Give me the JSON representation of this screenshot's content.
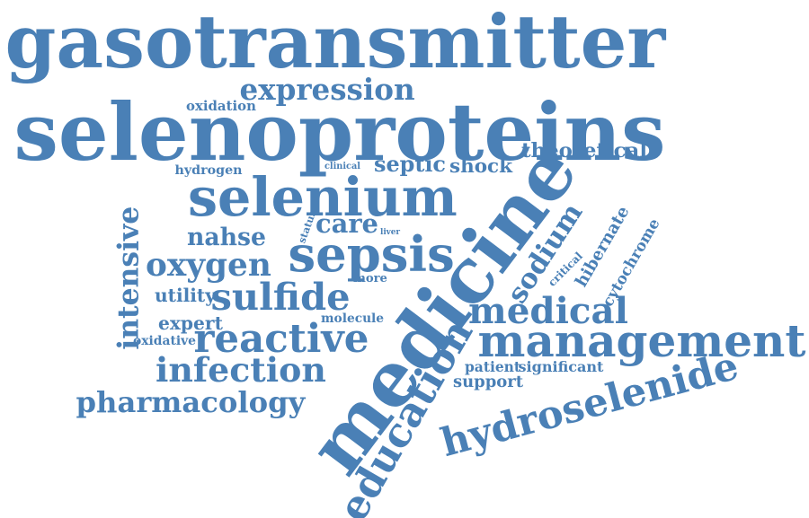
{
  "style": {
    "word_color": "#4a80b6",
    "background": "#ffffff"
  },
  "words": [
    {
      "id": "gasotransmitter",
      "text": "gasotransmitter"
    },
    {
      "id": "selenoproteins",
      "text": "selenoproteins"
    },
    {
      "id": "expression",
      "text": "expression"
    },
    {
      "id": "oxidation",
      "text": "oxidation"
    },
    {
      "id": "theoretical",
      "text": "theoretical"
    },
    {
      "id": "hydrogen",
      "text": "hydrogen"
    },
    {
      "id": "clinical",
      "text": "clinical"
    },
    {
      "id": "septic",
      "text": "septic"
    },
    {
      "id": "shock",
      "text": "shock"
    },
    {
      "id": "selenium",
      "text": "selenium"
    },
    {
      "id": "intensive",
      "text": "intensive"
    },
    {
      "id": "status",
      "text": "status"
    },
    {
      "id": "care",
      "text": "care"
    },
    {
      "id": "liver",
      "text": "liver"
    },
    {
      "id": "nahse",
      "text": "nahse"
    },
    {
      "id": "sepsis",
      "text": "sepsis"
    },
    {
      "id": "oxygen",
      "text": "oxygen"
    },
    {
      "id": "medicine",
      "text": "medicine"
    },
    {
      "id": "sodium",
      "text": "sodium"
    },
    {
      "id": "hibernate",
      "text": "hibernate"
    },
    {
      "id": "cytochrome",
      "text": "cytochrome"
    },
    {
      "id": "critical",
      "text": "critical"
    },
    {
      "id": "more",
      "text": "more"
    },
    {
      "id": "utility",
      "text": "utility"
    },
    {
      "id": "sulfide",
      "text": "sulfide"
    },
    {
      "id": "medical",
      "text": "medical"
    },
    {
      "id": "expert",
      "text": "expert"
    },
    {
      "id": "molecule",
      "text": "molecule"
    },
    {
      "id": "reactive",
      "text": "reactive"
    },
    {
      "id": "management",
      "text": "management"
    },
    {
      "id": "oxidative",
      "text": "oxidative"
    },
    {
      "id": "infection",
      "text": "infection"
    },
    {
      "id": "patient",
      "text": "patient"
    },
    {
      "id": "significant",
      "text": "significant"
    },
    {
      "id": "education",
      "text": "education"
    },
    {
      "id": "support",
      "text": "support"
    },
    {
      "id": "hydroselenide",
      "text": "hydroselenide"
    },
    {
      "id": "pharmacology",
      "text": "pharmacology"
    }
  ]
}
